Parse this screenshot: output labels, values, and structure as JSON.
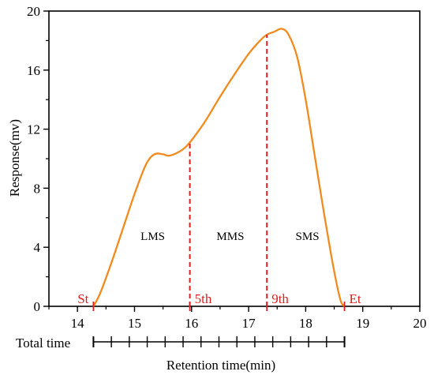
{
  "chart_data": {
    "type": "line",
    "xlabel": "Retention time(min)",
    "ylabel": "Response(mv)",
    "xlim": [
      13.5,
      20
    ],
    "ylim": [
      0,
      20
    ],
    "x_ticks": [
      14,
      15,
      16,
      17,
      18,
      19,
      20
    ],
    "y_ticks": [
      0,
      4,
      8,
      12,
      16,
      20
    ],
    "grid": false,
    "line_color": "#f28a1e",
    "marker_color": "#e02020",
    "series": [
      {
        "x": [
          14.28,
          14.4,
          14.6,
          14.8,
          15.0,
          15.2,
          15.35,
          15.5,
          15.6,
          15.75,
          15.9,
          16.05,
          16.25,
          16.5,
          16.75,
          17.0,
          17.2,
          17.32,
          17.45,
          17.58,
          17.7,
          17.85,
          18.0,
          18.15,
          18.3,
          18.45,
          18.55,
          18.62,
          18.68
        ],
        "y": [
          0.0,
          0.9,
          3.0,
          5.3,
          7.6,
          9.6,
          10.3,
          10.3,
          10.2,
          10.4,
          10.8,
          11.5,
          12.6,
          14.2,
          15.7,
          17.1,
          18.0,
          18.4,
          18.6,
          18.8,
          18.4,
          16.9,
          14.0,
          10.4,
          6.8,
          3.4,
          1.4,
          0.3,
          0.0
        ]
      }
    ],
    "markers": [
      {
        "x": 14.28,
        "label": "St"
      },
      {
        "x": 15.97,
        "label": "5th"
      },
      {
        "x": 17.32,
        "label": "9th"
      },
      {
        "x": 18.68,
        "label": "Et"
      }
    ],
    "dividers": [
      15.97,
      17.32
    ],
    "regions": [
      {
        "x": 15.32,
        "y": 4.5,
        "label": "LMS"
      },
      {
        "x": 16.68,
        "y": 4.5,
        "label": "MMS"
      },
      {
        "x": 18.03,
        "y": 4.5,
        "label": "SMS"
      }
    ],
    "total_time": {
      "label": "Total time",
      "start": 14.28,
      "end": 18.68,
      "divisions": 14
    }
  }
}
